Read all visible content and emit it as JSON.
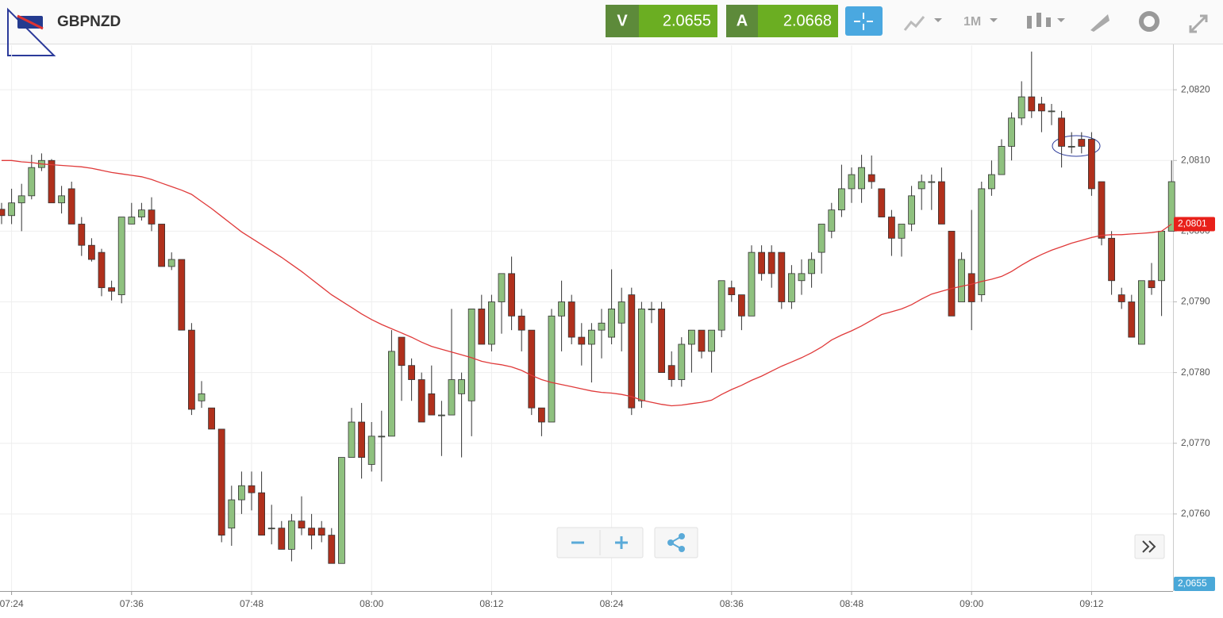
{
  "header": {
    "symbol": "GBPNZD",
    "bid_label": "V",
    "bid": "2.0655",
    "ask_label": "A",
    "ask": "2.0668",
    "timeframe": "1M"
  },
  "chart_data": {
    "type": "candlestick",
    "categories": [
      null,
      "07:24",
      null,
      null,
      null,
      null,
      null,
      null,
      null,
      null,
      null,
      null,
      null,
      "07:36",
      null,
      null,
      null,
      null,
      null,
      null,
      null,
      null,
      null,
      null,
      null,
      "07:48",
      null,
      null,
      null,
      null,
      null,
      null,
      null,
      null,
      null,
      null,
      null,
      "08:00",
      null,
      null,
      null,
      null,
      null,
      null,
      null,
      null,
      null,
      null,
      null,
      "08:12",
      null,
      null,
      null,
      null,
      null,
      null,
      null,
      null,
      null,
      null,
      null,
      "08:24",
      null,
      null,
      null,
      null,
      null,
      null,
      null,
      null,
      null,
      null,
      null,
      "08:36",
      null,
      null,
      null,
      null,
      null,
      null,
      null,
      null,
      null,
      null,
      null,
      "08:48",
      null,
      null,
      null,
      null,
      null,
      null,
      null,
      null,
      null,
      null,
      null,
      "09:00",
      null,
      null,
      null,
      null,
      null,
      null,
      null,
      null,
      null,
      null,
      null,
      "09:12",
      null,
      null,
      null,
      null,
      null,
      null,
      null,
      null
    ],
    "open": [
      2.08031,
      2.08022,
      2.0804,
      2.0805,
      2.0809,
      2.081,
      2.0804,
      2.0806,
      2.0801,
      2.0798,
      2.0797,
      2.0792,
      2.0791,
      2.0801,
      2.0802,
      2.0803,
      2.0801,
      2.0795,
      2.0796,
      2.0786,
      2.0776,
      2.0775,
      2.0772,
      2.0758,
      2.0762,
      2.0764,
      2.0763,
      2.0758,
      2.0758,
      2.0755,
      2.0759,
      2.0758,
      2.0758,
      2.0757,
      2.0753,
      2.0768,
      2.0773,
      2.0767,
      2.0771,
      2.0771,
      2.0785,
      2.0781,
      2.0779,
      2.0777,
      2.0774,
      2.0774,
      2.0777,
      2.0776,
      2.0789,
      2.0784,
      2.079,
      2.0794,
      2.0788,
      2.0786,
      2.0775,
      2.0773,
      2.0788,
      2.079,
      2.0785,
      2.0784,
      2.0786,
      2.0785,
      2.0787,
      2.0791,
      2.0776,
      2.0789,
      2.0789,
      2.0781,
      2.0779,
      2.0784,
      2.0786,
      2.0783,
      2.0786,
      2.0792,
      2.0791,
      2.0788,
      2.0797,
      2.0797,
      2.0797,
      2.079,
      2.0793,
      2.0794,
      2.0797,
      2.08,
      2.0803,
      2.0806,
      2.0806,
      2.0808,
      2.0806,
      2.0802,
      2.0799,
      2.0801,
      2.0806,
      2.0807,
      2.0807,
      2.08,
      2.079,
      2.0794,
      2.0791,
      2.0806,
      2.0808,
      2.0812,
      2.0816,
      2.0819,
      2.0818,
      2.0817,
      2.0816,
      2.0812,
      2.0813,
      2.0813,
      2.0807,
      2.0799,
      2.0791,
      2.079,
      2.0784,
      2.0793,
      2.0793,
      2.08
    ],
    "high": [
      2.0804,
      2.0806,
      2.08067,
      2.08108,
      2.0811,
      2.08102,
      2.08064,
      2.0807,
      2.0802,
      2.0799,
      2.07975,
      2.0793,
      2.0802,
      2.0804,
      2.0804,
      2.08048,
      2.0801,
      2.0797,
      2.0796,
      2.0787,
      2.07788,
      2.0775,
      2.0772,
      2.0764,
      2.0766,
      2.0766,
      2.0766,
      2.07613,
      2.0759,
      2.076,
      2.07625,
      2.076,
      2.0759,
      2.0758,
      2.0768,
      2.0775,
      2.07757,
      2.0773,
      2.07746,
      2.0786,
      2.0785,
      2.0782,
      2.078,
      2.0781,
      2.0776,
      2.0789,
      2.078,
      2.0789,
      2.0791,
      2.0791,
      2.0794,
      2.07964,
      2.0789,
      2.0786,
      2.0775,
      2.0789,
      2.0793,
      2.0791,
      2.0787,
      2.0787,
      2.0789,
      2.07946,
      2.0792,
      2.0792,
      2.079,
      2.079,
      2.079,
      2.0783,
      2.0785,
      2.0786,
      2.0786,
      2.0786,
      2.0793,
      2.0793,
      2.0791,
      2.0798,
      2.0798,
      2.0798,
      2.0797,
      2.07952,
      2.0796,
      2.0797,
      2.0801,
      2.0804,
      2.08094,
      2.0809,
      2.08108,
      2.08107,
      2.0806,
      2.0803,
      2.0801,
      2.08064,
      2.0808,
      2.0808,
      2.0809,
      2.08,
      2.0797,
      2.0803,
      2.0807,
      2.081,
      2.0813,
      2.08168,
      2.08212,
      2.08254,
      2.0819,
      2.0818,
      2.0817,
      2.0814,
      2.0814,
      2.0814,
      2.0807,
      2.08,
      2.0792,
      2.0791,
      2.0793,
      2.07955,
      2.08,
      2.081
    ],
    "low": [
      2.0801,
      2.0801,
      2.08,
      2.08045,
      2.08085,
      2.0804,
      2.08025,
      2.0801,
      2.07965,
      2.07957,
      2.07908,
      2.07902,
      2.07898,
      2.0801,
      2.08015,
      2.08,
      2.0795,
      2.07945,
      2.0786,
      2.0774,
      2.0775,
      2.0772,
      2.0756,
      2.07555,
      2.076,
      2.07605,
      2.0757,
      2.07557,
      2.0755,
      2.07533,
      2.0757,
      2.0755,
      2.0756,
      2.0753,
      2.0753,
      2.0768,
      2.0765,
      2.0766,
      2.07646,
      2.0771,
      2.0776,
      2.0776,
      2.0773,
      2.0774,
      2.07682,
      2.0774,
      2.0768,
      2.0771,
      2.0784,
      2.0783,
      2.07855,
      2.0786,
      2.0783,
      2.0774,
      2.0771,
      2.0773,
      2.0783,
      2.0784,
      2.0781,
      2.07786,
      2.0782,
      2.0784,
      2.0783,
      2.0774,
      2.0775,
      2.0787,
      2.078,
      2.0778,
      2.0778,
      2.078,
      2.0782,
      2.078,
      2.0785,
      2.079,
      2.0786,
      2.0788,
      2.0793,
      2.0792,
      2.0789,
      2.0789,
      2.0791,
      2.0792,
      2.0794,
      2.0799,
      2.0802,
      2.0804,
      2.0804,
      2.0806,
      2.0802,
      2.07965,
      2.07964,
      2.08,
      2.0803,
      2.0803,
      2.0801,
      2.0788,
      2.079,
      2.0786,
      2.079,
      2.0805,
      2.0808,
      2.081,
      2.0815,
      2.0816,
      2.0814,
      2.0815,
      2.0809,
      2.0811,
      2.0811,
      2.0805,
      2.0798,
      2.0791,
      2.0789,
      2.0785,
      2.0784,
      2.0791,
      2.0788,
      2.08
    ],
    "close": [
      2.08022,
      2.0804,
      2.0805,
      2.0809,
      2.081,
      2.0804,
      2.0805,
      2.0801,
      2.0798,
      2.0796,
      2.0792,
      2.07915,
      2.0802,
      2.0802,
      2.0803,
      2.0801,
      2.0795,
      2.0796,
      2.0786,
      2.07748,
      2.0777,
      2.0772,
      2.0757,
      2.0762,
      2.0764,
      2.0763,
      2.0757,
      2.0758,
      2.0755,
      2.0759,
      2.0758,
      2.0757,
      2.0757,
      2.0753,
      2.0768,
      2.0773,
      2.0768,
      2.0771,
      2.0771,
      2.0783,
      2.0781,
      2.0779,
      2.0773,
      2.0774,
      2.0774,
      2.0779,
      2.0779,
      2.0789,
      2.0784,
      2.079,
      2.0794,
      2.0788,
      2.0786,
      2.0775,
      2.0773,
      2.0788,
      2.079,
      2.0785,
      2.0784,
      2.0786,
      2.0787,
      2.0789,
      2.079,
      2.0775,
      2.0789,
      2.0789,
      2.078,
      2.0779,
      2.0784,
      2.0786,
      2.0783,
      2.0786,
      2.0793,
      2.0791,
      2.0788,
      2.0797,
      2.0794,
      2.0794,
      2.079,
      2.0794,
      2.0794,
      2.0796,
      2.0801,
      2.0803,
      2.0806,
      2.0808,
      2.0809,
      2.0807,
      2.0802,
      2.0799,
      2.0801,
      2.0805,
      2.0807,
      2.0807,
      2.0801,
      2.0788,
      2.0796,
      2.079,
      2.0806,
      2.0808,
      2.0812,
      2.0816,
      2.0819,
      2.0817,
      2.0817,
      2.0817,
      2.0812,
      2.0812,
      2.0812,
      2.0806,
      2.0799,
      2.0793,
      2.079,
      2.0785,
      2.0793,
      2.0792,
      2.08,
      2.0807
    ],
    "up_color": "#8fc17f",
    "down_color": "#b0301c",
    "moving_average": {
      "color": "#e03a3a",
      "values": [
        2.081,
        2.081,
        2.08098,
        2.08097,
        2.08095,
        2.08094,
        2.08093,
        2.08092,
        2.08091,
        2.08089,
        2.08086,
        2.08083,
        2.08081,
        2.08079,
        2.08077,
        2.08073,
        2.08068,
        2.08063,
        2.08058,
        2.08052,
        2.08042,
        2.08032,
        2.08021,
        2.0801,
        2.07999,
        2.0799,
        2.07981,
        2.07972,
        2.07963,
        2.07953,
        2.07943,
        2.07932,
        2.07921,
        2.0791,
        2.07901,
        2.07892,
        2.07883,
        2.07875,
        2.07868,
        2.07862,
        2.07856,
        2.0785,
        2.07843,
        2.07837,
        2.07833,
        2.07829,
        2.07825,
        2.07821,
        2.07816,
        2.07813,
        2.07811,
        2.07808,
        2.07803,
        2.07796,
        2.0779,
        2.07786,
        2.07783,
        2.0778,
        2.07777,
        2.07774,
        2.07772,
        2.07771,
        2.07769,
        2.07766,
        2.07761,
        2.07758,
        2.07755,
        2.07753,
        2.07754,
        2.07756,
        2.07758,
        2.07761,
        2.07769,
        2.07776,
        2.07782,
        2.07789,
        2.07795,
        2.07802,
        2.07809,
        2.07815,
        2.07821,
        2.07828,
        2.07836,
        2.07846,
        2.07853,
        2.07859,
        2.07866,
        2.07874,
        2.07882,
        2.07886,
        2.0789,
        2.07896,
        2.07904,
        2.07911,
        2.07915,
        2.07919,
        2.07922,
        2.07925,
        2.07929,
        2.07932,
        2.07936,
        2.07943,
        2.07952,
        2.0796,
        2.07967,
        2.07973,
        2.07978,
        2.07983,
        2.07987,
        2.07991,
        2.07994,
        2.07995,
        2.07995,
        2.07996,
        2.07997,
        2.07998,
        2.08,
        2.0801
      ]
    },
    "price_labels": [
      {
        "value": 2.0801,
        "label": "2,0801",
        "color": "#e8201a"
      },
      {
        "value": 2.0655,
        "label": "2,0655",
        "color": "#4aa8d8"
      }
    ],
    "ylim": [
      2.07491,
      2.08263
    ],
    "yticks": [
      {
        "value": 2.076,
        "label": "2,0760"
      },
      {
        "value": 2.077,
        "label": "2,0770"
      },
      {
        "value": 2.078,
        "label": "2,0780"
      },
      {
        "value": 2.079,
        "label": "2,0790"
      },
      {
        "value": 2.08,
        "label": "2,0800"
      },
      {
        "value": 2.081,
        "label": "2,0810"
      },
      {
        "value": 2.082,
        "label": "2,0820"
      }
    ],
    "grid": true
  }
}
